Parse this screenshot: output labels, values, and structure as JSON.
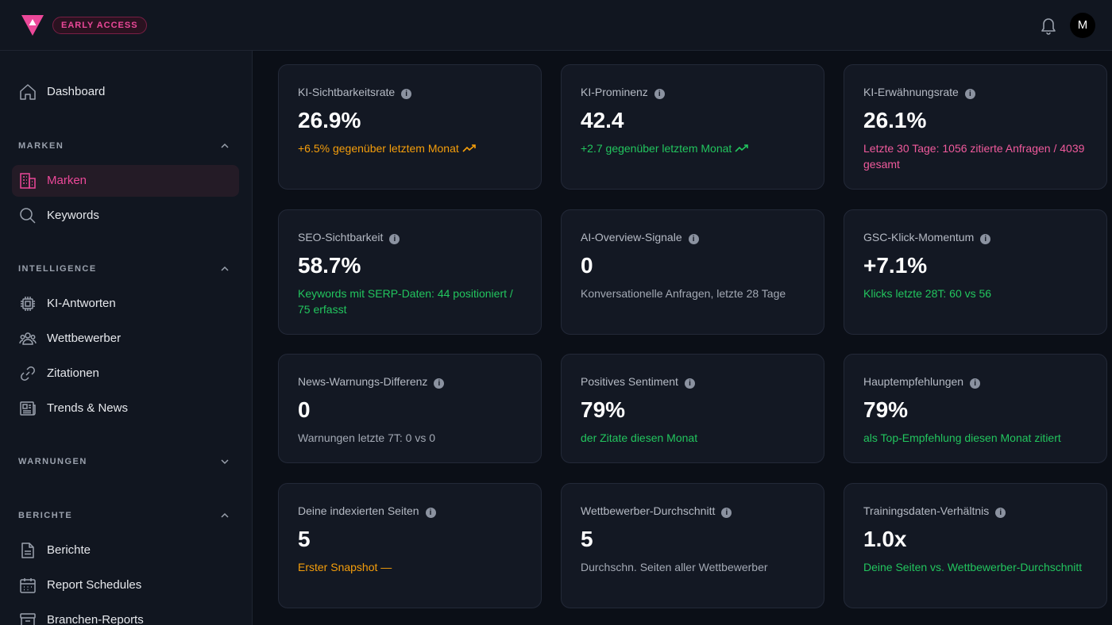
{
  "header": {
    "badge": "EARLY ACCESS",
    "avatar_initial": "M",
    "brand_color": "#ec4899"
  },
  "sidebar": {
    "dashboard": "Dashboard",
    "sections": {
      "marken": {
        "label": "MARKEN",
        "expanded": true
      },
      "intelligence": {
        "label": "INTELLIGENCE",
        "expanded": true
      },
      "warnungen": {
        "label": "WARNUNGEN",
        "expanded": false
      },
      "berichte": {
        "label": "BERICHTE",
        "expanded": true
      }
    },
    "items": {
      "marken": "Marken",
      "keywords": "Keywords",
      "ki_antworten": "KI-Antworten",
      "wettbewerber": "Wettbewerber",
      "zitationen": "Zitationen",
      "trends_news": "Trends & News",
      "berichte": "Berichte",
      "report_schedules": "Report Schedules",
      "branchen_reports": "Branchen-Reports"
    },
    "active_item": "marken"
  },
  "cards": [
    {
      "title": "KI-Sichtbarkeitsrate",
      "value": "26.9%",
      "sub": "+6.5% gegenüber letztem Monat",
      "tone": "orange",
      "trend": true
    },
    {
      "title": "KI-Prominenz",
      "value": "42.4",
      "sub": "+2.7 gegenüber letztem Monat",
      "tone": "green",
      "trend": true
    },
    {
      "title": "KI-Erwähnungsrate",
      "value": "26.1%",
      "sub": "Letzte 30 Tage: 1056 zitierte Anfragen / 4039 gesamt",
      "tone": "pink",
      "trend": false
    },
    {
      "title": "SEO-Sichtbarkeit",
      "value": "58.7%",
      "sub": "Keywords mit SERP-Daten: 44 positioniert / 75 erfasst",
      "tone": "green",
      "trend": false
    },
    {
      "title": "AI-Overview-Signale",
      "value": "0",
      "sub": "Konversationelle Anfragen, letzte 28 Tage",
      "tone": "grey",
      "trend": false
    },
    {
      "title": "GSC-Klick-Momentum",
      "value": "+7.1%",
      "sub": "Klicks letzte 28T: 60 vs 56",
      "tone": "green",
      "trend": false
    },
    {
      "title": "News-Warnungs-Differenz",
      "value": "0",
      "sub": "Warnungen letzte 7T: 0 vs 0",
      "tone": "grey",
      "trend": false
    },
    {
      "title": "Positives Sentiment",
      "value": "79%",
      "sub": "der Zitate diesen Monat",
      "tone": "green",
      "trend": false
    },
    {
      "title": "Hauptempfehlungen",
      "value": "79%",
      "sub": "als Top-Empfehlung diesen Monat zitiert",
      "tone": "green",
      "trend": false
    },
    {
      "title": "Deine indexierten Seiten",
      "value": "5",
      "sub": "Erster Snapshot —",
      "tone": "orange",
      "trend": false
    },
    {
      "title": "Wettbewerber-Durchschnitt",
      "value": "5",
      "sub": "Durchschn. Seiten aller Wettbewerber",
      "tone": "grey",
      "trend": false
    },
    {
      "title": "Trainingsdaten-Verhältnis",
      "value": "1.0x",
      "sub": "Deine Seiten vs. Wettbewerber-Durchschnitt",
      "tone": "green",
      "trend": false
    }
  ]
}
